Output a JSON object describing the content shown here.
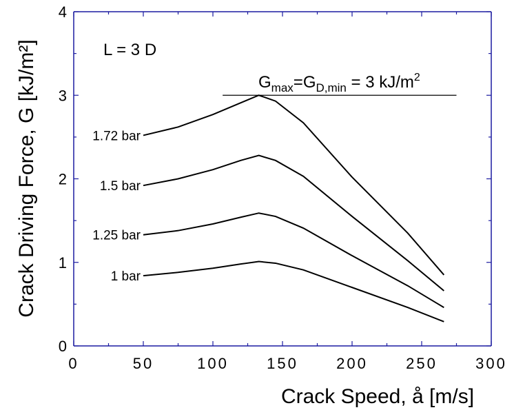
{
  "chart_data": {
    "type": "line",
    "xlabel": "Crack Speed, å [m/s]",
    "ylabel": "Crack Driving Force, G [kJ/m²]",
    "xlim": [
      0,
      300
    ],
    "ylim": [
      0,
      4
    ],
    "xticks": [
      0,
      50,
      100,
      150,
      200,
      250,
      300
    ],
    "yticks": [
      0,
      1,
      2,
      3,
      4
    ],
    "grid": false,
    "series": [
      {
        "name": "1.72 bar",
        "x": [
          50,
          75,
          100,
          120,
          133,
          145,
          165,
          200,
          240,
          266
        ],
        "y": [
          2.52,
          2.62,
          2.77,
          2.91,
          3.0,
          2.93,
          2.67,
          2.02,
          1.35,
          0.85
        ]
      },
      {
        "name": "1.5 bar",
        "x": [
          50,
          75,
          100,
          120,
          133,
          145,
          165,
          200,
          240,
          266
        ],
        "y": [
          1.92,
          2.0,
          2.11,
          2.22,
          2.28,
          2.22,
          2.03,
          1.55,
          1.02,
          0.66
        ]
      },
      {
        "name": "1.25 bar",
        "x": [
          50,
          75,
          100,
          120,
          133,
          145,
          165,
          200,
          240,
          266
        ],
        "y": [
          1.33,
          1.38,
          1.46,
          1.54,
          1.59,
          1.55,
          1.41,
          1.08,
          0.72,
          0.46
        ]
      },
      {
        "name": "1 bar",
        "x": [
          50,
          75,
          100,
          120,
          133,
          145,
          165,
          200,
          240,
          266
        ],
        "y": [
          0.84,
          0.88,
          0.93,
          0.98,
          1.01,
          0.99,
          0.91,
          0.7,
          0.46,
          0.29
        ]
      }
    ],
    "annotations": {
      "L_text": "L = 3 D",
      "g": {
        "G1": "G",
        "sub_max": "max",
        "eq": "=G",
        "sub_dmin": "D,min",
        "value": " = 3 kJ/m",
        "sup": "2"
      },
      "reference_line": {
        "y": 3,
        "x_start": 107,
        "x_end": 275
      }
    }
  }
}
